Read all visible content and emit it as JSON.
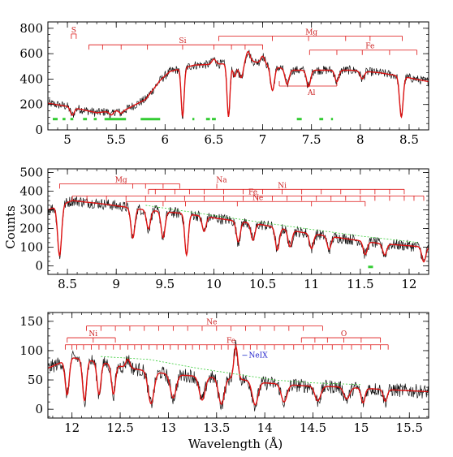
{
  "figure": {
    "ylabel": "Counts",
    "xlabel": "Wavelength (Å)"
  },
  "chart_data": [
    {
      "type": "line",
      "panel": "top",
      "xlim": [
        4.8,
        8.7
      ],
      "ylim": [
        0,
        850
      ],
      "xticks": [
        5,
        5.5,
        6,
        6.5,
        7,
        7.5,
        8,
        8.5
      ],
      "xtick_labels": [
        "5",
        "5.5",
        "6",
        "6.5",
        "7",
        "7.5",
        "8",
        "8.5"
      ],
      "yticks": [
        0,
        200,
        400,
        600,
        800
      ],
      "ytick_labels": [
        "0",
        "200",
        "400",
        "600",
        "800"
      ],
      "continuum": [
        [
          4.8,
          210
        ],
        [
          5.0,
          185
        ],
        [
          5.3,
          135
        ],
        [
          5.6,
          160
        ],
        [
          5.8,
          240
        ],
        [
          5.95,
          390
        ],
        [
          6.05,
          460
        ],
        [
          6.3,
          510
        ],
        [
          6.6,
          520
        ],
        [
          6.9,
          540
        ],
        [
          7.1,
          500
        ],
        [
          7.3,
          470
        ],
        [
          7.6,
          470
        ],
        [
          7.9,
          470
        ],
        [
          8.2,
          450
        ],
        [
          8.5,
          410
        ],
        [
          8.7,
          380
        ]
      ],
      "absorption_lines": [
        [
          5.05,
          60,
          0.02
        ],
        [
          5.45,
          30,
          0.02
        ],
        [
          5.55,
          25,
          0.02
        ],
        [
          6.18,
          380,
          0.015
        ],
        [
          6.65,
          420,
          0.015
        ],
        [
          6.72,
          150,
          0.02
        ],
        [
          6.78,
          120,
          0.02
        ],
        [
          7.1,
          190,
          0.02
        ],
        [
          7.25,
          120,
          0.02
        ],
        [
          7.47,
          130,
          0.02
        ],
        [
          7.76,
          90,
          0.02
        ],
        [
          8.02,
          60,
          0.02
        ],
        [
          8.42,
          320,
          0.018
        ]
      ],
      "emission_lines": [
        [
          6.5,
          40,
          0.02
        ],
        [
          6.73,
          60,
          0.015
        ],
        [
          6.85,
          80,
          0.02
        ],
        [
          7.0,
          60,
          0.02
        ]
      ],
      "noise": 35,
      "green_segments": [
        [
          4.85,
          4.9
        ],
        [
          4.95,
          4.98
        ],
        [
          5.03,
          5.06
        ],
        [
          5.16,
          5.2
        ],
        [
          5.27,
          5.3
        ],
        [
          5.38,
          5.6
        ],
        [
          5.75,
          5.95
        ],
        [
          6.28,
          6.3
        ],
        [
          6.42,
          6.46
        ],
        [
          6.48,
          6.52
        ],
        [
          7.35,
          7.4
        ],
        [
          7.58,
          7.62
        ],
        [
          7.7,
          7.72
        ]
      ],
      "green_level": 85,
      "ions": [
        {
          "label": "S",
          "x0": 5.04,
          "x1": 5.09,
          "y": 755,
          "ticks": [
            5.04,
            5.09
          ],
          "label_x": 5.065
        },
        {
          "label": "Si",
          "x0": 5.22,
          "x1": 7.0,
          "y": 670,
          "ticks": [
            5.22,
            5.36,
            5.55,
            5.82,
            6.18,
            6.5,
            6.68,
            6.82,
            7.0
          ],
          "label_x": 6.18
        },
        {
          "label": "Mg",
          "x0": 6.55,
          "x1": 8.43,
          "y": 738,
          "ticks": [
            6.55,
            7.1,
            7.47,
            7.85,
            8.1,
            8.43
          ],
          "label_x": 7.5
        },
        {
          "label": "Fe",
          "x0": 7.48,
          "x1": 8.58,
          "y": 628,
          "ticks": [
            7.48,
            7.76,
            8.02,
            8.3,
            8.58
          ],
          "label_x": 8.1
        },
        {
          "label": "Al",
          "x0": 7.17,
          "x1": 7.76,
          "y": 345,
          "ticks": [
            7.17,
            7.76
          ],
          "label_x": 7.5,
          "tick_dir": "up",
          "label_below": true
        }
      ]
    },
    {
      "type": "line",
      "panel": "middle",
      "xlim": [
        8.3,
        12.2
      ],
      "ylim": [
        -45,
        520
      ],
      "xticks": [
        8.5,
        9,
        9.5,
        10,
        10.5,
        11,
        11.5,
        12
      ],
      "xtick_labels": [
        "8.5",
        "9",
        "9.5",
        "10",
        "10.5",
        "11",
        "11.5",
        "12"
      ],
      "yticks": [
        0,
        100,
        200,
        300,
        400,
        500
      ],
      "ytick_labels": [
        "0",
        "100",
        "200",
        "300",
        "400",
        "500"
      ],
      "continuum": [
        [
          8.3,
          300
        ],
        [
          8.55,
          350
        ],
        [
          8.9,
          330
        ],
        [
          9.3,
          300
        ],
        [
          9.7,
          280
        ],
        [
          10.1,
          250
        ],
        [
          10.5,
          220
        ],
        [
          10.9,
          180
        ],
        [
          11.3,
          150
        ],
        [
          11.7,
          120
        ],
        [
          12.2,
          100
        ]
      ],
      "absorption_lines": [
        [
          8.42,
          270,
          0.02
        ],
        [
          9.17,
          160,
          0.02
        ],
        [
          9.33,
          100,
          0.02
        ],
        [
          9.48,
          140,
          0.02
        ],
        [
          9.72,
          220,
          0.018
        ],
        [
          9.9,
          80,
          0.02
        ],
        [
          10.25,
          110,
          0.02
        ],
        [
          10.4,
          90,
          0.02
        ],
        [
          10.65,
          120,
          0.02
        ],
        [
          10.78,
          90,
          0.02
        ],
        [
          11.0,
          80,
          0.02
        ],
        [
          11.18,
          70,
          0.02
        ],
        [
          11.55,
          70,
          0.02
        ],
        [
          11.75,
          60,
          0.02
        ],
        [
          12.15,
          80,
          0.02
        ]
      ],
      "emission_lines": [],
      "noise": 30,
      "green_dashed": [
        [
          9.3,
          325
        ],
        [
          10.0,
          270
        ],
        [
          10.8,
          210
        ],
        [
          11.5,
          160
        ],
        [
          12.1,
          125
        ]
      ],
      "green_segments": [
        [
          11.58,
          11.63
        ]
      ],
      "green_level": -5,
      "ions": [
        {
          "label": "Mg",
          "x0": 8.42,
          "x1": 9.65,
          "y": 440,
          "ticks": [
            8.42,
            9.17,
            9.3,
            9.48,
            9.65
          ],
          "label_x": 9.05
        },
        {
          "label": "Na",
          "x0": 10.03,
          "x1": 10.03,
          "y": 440,
          "ticks": [
            10.03
          ],
          "label_x": 10.08,
          "tick_dir": "down"
        },
        {
          "label": "Ni",
          "x0": 9.33,
          "x1": 11.95,
          "y": 410,
          "ticks": [
            9.33,
            9.4,
            9.6,
            9.75,
            9.9,
            10.1,
            10.3,
            10.5,
            10.7,
            10.9,
            11.1,
            11.3,
            11.5,
            11.65,
            11.8,
            11.95
          ],
          "label_x": 10.7
        },
        {
          "label": "Fe",
          "x0": 8.55,
          "x1": 12.15,
          "y": 375,
          "ticks": [
            8.55,
            8.7,
            8.9,
            9.1,
            9.3,
            9.5,
            9.7,
            9.9,
            10.1,
            10.3,
            10.45,
            10.6,
            10.75,
            10.9,
            11.05,
            11.2,
            11.35,
            11.5,
            11.65,
            11.8,
            11.95,
            12.05,
            12.15
          ],
          "label_x": 10.4
        },
        {
          "label": "Ne",
          "x0": 9.1,
          "x1": 11.55,
          "y": 345,
          "ticks": [
            9.1,
            9.48,
            9.71,
            10.24,
            11.0,
            11.55
          ],
          "label_x": 10.45
        }
      ]
    },
    {
      "type": "line",
      "panel": "bottom",
      "xlim": [
        11.75,
        15.7
      ],
      "ylim": [
        -15,
        165
      ],
      "xticks": [
        12,
        12.5,
        13,
        13.5,
        14,
        14.5,
        15,
        15.5
      ],
      "xtick_labels": [
        "12",
        "12.5",
        "13",
        "13.5",
        "14",
        "14.5",
        "15",
        "15.5"
      ],
      "yticks": [
        0,
        50,
        100,
        150
      ],
      "ytick_labels": [
        "0",
        "50",
        "100",
        "150"
      ],
      "continuum": [
        [
          11.75,
          70
        ],
        [
          12.0,
          88
        ],
        [
          12.3,
          80
        ],
        [
          12.6,
          70
        ],
        [
          13.0,
          60
        ],
        [
          13.4,
          55
        ],
        [
          13.7,
          52
        ],
        [
          14.0,
          45
        ],
        [
          14.4,
          40
        ],
        [
          14.8,
          38
        ],
        [
          15.2,
          34
        ],
        [
          15.7,
          30
        ]
      ],
      "absorption_lines": [
        [
          11.95,
          60,
          0.02
        ],
        [
          12.13,
          70,
          0.02
        ],
        [
          12.28,
          55,
          0.02
        ],
        [
          12.43,
          50,
          0.02
        ],
        [
          12.82,
          55,
          0.03
        ],
        [
          13.05,
          40,
          0.03
        ],
        [
          13.35,
          40,
          0.03
        ],
        [
          13.55,
          45,
          0.03
        ],
        [
          13.9,
          40,
          0.03
        ],
        [
          14.2,
          30,
          0.03
        ],
        [
          14.55,
          25,
          0.03
        ],
        [
          14.85,
          20,
          0.03
        ],
        [
          15.02,
          25,
          0.02
        ],
        [
          15.25,
          20,
          0.02
        ]
      ],
      "emission_lines": [
        [
          13.7,
          55,
          0.02
        ],
        [
          12.58,
          15,
          0.02
        ]
      ],
      "noise": 12,
      "green_dashed": [
        [
          12.3,
          90
        ],
        [
          12.8,
          85
        ],
        [
          13.3,
          70
        ],
        [
          13.7,
          60
        ],
        [
          14.1,
          50
        ],
        [
          14.5,
          45
        ],
        [
          15.0,
          42
        ]
      ],
      "green_segments": [],
      "green_level": 0,
      "annotation": {
        "label": "NeIX",
        "x": 13.75,
        "y": 92
      },
      "ions": [
        {
          "label": "Ne",
          "x0": 12.15,
          "x1": 14.6,
          "y": 142,
          "ticks": [
            12.15,
            12.3,
            12.45,
            12.6,
            12.75,
            12.9,
            13.05,
            13.2,
            13.35,
            13.5,
            13.65,
            13.8,
            13.95,
            14.1,
            14.25,
            14.4,
            14.6
          ],
          "label_x": 13.45
        },
        {
          "label": "Ni",
          "x0": 11.95,
          "x1": 12.45,
          "y": 122,
          "ticks": [
            11.95,
            12.22,
            12.45
          ],
          "label_x": 12.22
        },
        {
          "label": "O",
          "x0": 14.38,
          "x1": 15.2,
          "y": 122,
          "ticks": [
            14.38,
            14.52,
            14.65,
            14.82,
            15.0,
            15.2
          ],
          "label_x": 14.82
        },
        {
          "label": "Fe",
          "x0": 11.93,
          "x1": 15.28,
          "y": 110,
          "ticks": [
            11.93,
            12.0,
            12.05,
            12.12,
            12.2,
            12.28,
            12.35,
            12.43,
            12.5,
            12.58,
            12.65,
            12.72,
            12.8,
            12.88,
            12.95,
            13.02,
            13.1,
            13.18,
            13.25,
            13.32,
            13.4,
            13.48,
            13.55,
            13.62,
            13.7,
            13.78,
            13.85,
            13.92,
            14.0,
            14.1,
            14.2,
            14.3,
            14.4,
            14.5,
            14.6,
            14.7,
            14.8,
            14.9,
            15.0,
            15.1,
            15.2,
            15.28
          ],
          "label_x": 13.65
        }
      ]
    }
  ]
}
